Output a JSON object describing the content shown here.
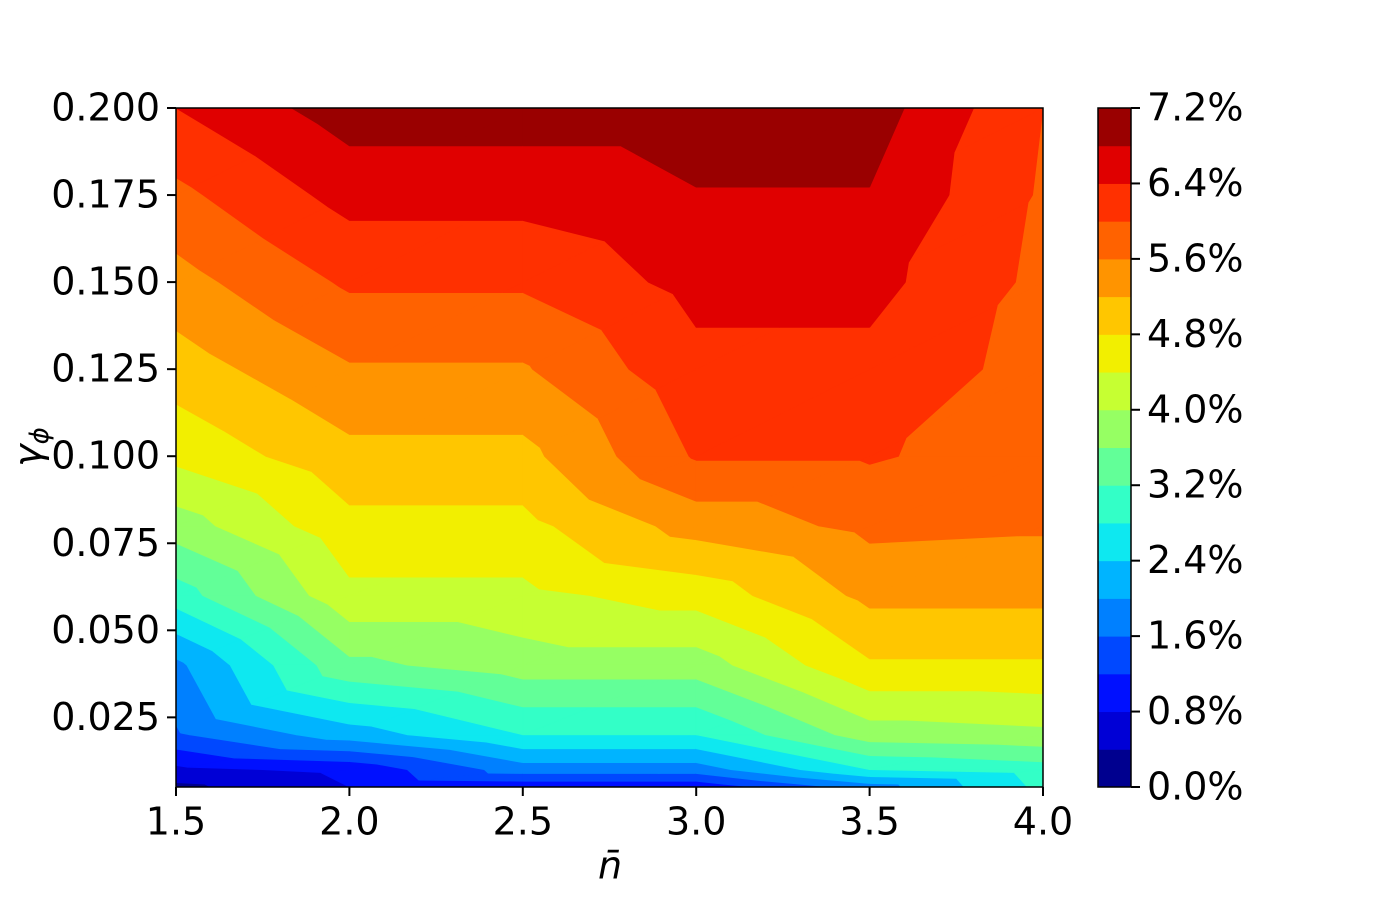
{
  "chart_data": {
    "type": "contourf",
    "xlabel": "n̄",
    "ylabel": "γ",
    "ylabel_sub": "ϕ",
    "x": [
      1.5,
      2.0,
      2.5,
      3.0,
      3.5,
      4.0
    ],
    "y": [
      0.005,
      0.01,
      0.02,
      0.04,
      0.06,
      0.08,
      0.1,
      0.125,
      0.15,
      0.175,
      0.2
    ],
    "values": [
      [
        0.3,
        0.8,
        0.9,
        0.9,
        1.8,
        2.9
      ],
      [
        0.7,
        0.9,
        1.8,
        1.8,
        2.8,
        3.0
      ],
      [
        1.55,
        2.2,
        2.8,
        2.8,
        3.8,
        3.9
      ],
      [
        1.9,
        3.5,
        3.8,
        3.8,
        4.75,
        4.75
      ],
      [
        3.0,
        4.3,
        4.3,
        4.56,
        5.3,
        5.3
      ],
      [
        3.8,
        4.68,
        4.68,
        5.36,
        5.7,
        5.65
      ],
      [
        4.5,
        5.08,
        5.08,
        6.04,
        6.04,
        5.8
      ],
      [
        5.0,
        5.56,
        5.56,
        6.28,
        6.28,
        5.85
      ],
      [
        5.45,
        6.06,
        6.06,
        6.53,
        6.53,
        5.9
      ],
      [
        5.9,
        6.54,
        6.54,
        6.78,
        6.78,
        5.95
      ],
      [
        6.4,
        7.0,
        7.0,
        7.0,
        7.0,
        6.0
      ]
    ],
    "levels": [
      0,
      0.4,
      0.8,
      1.2,
      1.6,
      2.0,
      2.4,
      2.8,
      3.2,
      3.6,
      4.0,
      4.4,
      4.8,
      5.2,
      5.6,
      6.0,
      6.4,
      6.8,
      7.2
    ],
    "colors": [
      "#00008f",
      "#0000d6",
      "#0010ff",
      "#0048ff",
      "#0080ff",
      "#00b4ff",
      "#0ee8f0",
      "#33ffc7",
      "#62ff98",
      "#96ff63",
      "#c6ff32",
      "#f2ef00",
      "#ffc600",
      "#ff9400",
      "#ff6200",
      "#ff3000",
      "#e00000",
      "#9a0000"
    ],
    "xlim": [
      1.5,
      4.0
    ],
    "ylim": [
      0.005,
      0.2
    ],
    "xticks": [
      1.5,
      {
        "value": 2.0,
        "label": "2.0"
      },
      2.5,
      {
        "value": 3.0,
        "label": "3.0"
      },
      3.5,
      {
        "value": 4.0,
        "label": "4.0"
      }
    ],
    "yticks": [
      0.025,
      {
        "value": 0.05,
        "label": "0.050"
      },
      0.075,
      {
        "value": 0.1,
        "label": "0.100"
      },
      0.125,
      {
        "value": 0.15,
        "label": "0.150"
      },
      0.175,
      {
        "value": 0.2,
        "label": "0.200"
      }
    ],
    "colorbar_ticks": [
      {
        "value": 0,
        "label": "0.0%"
      },
      {
        "value": 0.8,
        "label": "0.8%"
      },
      {
        "value": 1.6,
        "label": "1.6%"
      },
      {
        "value": 2.4,
        "label": "2.4%"
      },
      {
        "value": 3.2,
        "label": "3.2%"
      },
      {
        "value": 4.0,
        "label": "4.0%"
      },
      {
        "value": 4.8,
        "label": "4.8%"
      },
      {
        "value": 5.6,
        "label": "5.6%"
      },
      {
        "value": 6.4,
        "label": "6.4%"
      },
      {
        "value": 7.2,
        "label": "7.2%"
      }
    ]
  }
}
